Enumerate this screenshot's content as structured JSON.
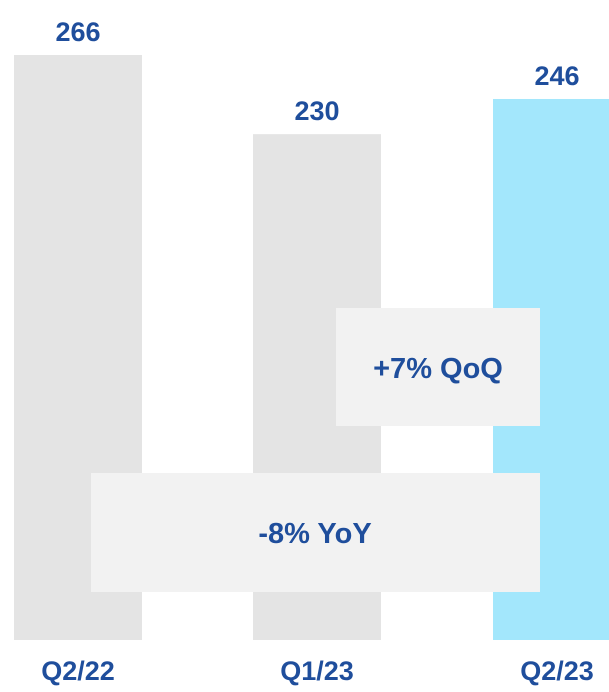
{
  "chart_data": {
    "type": "bar",
    "categories": [
      "Q2/22",
      "Q1/23",
      "Q2/23"
    ],
    "values": [
      266,
      230,
      246
    ],
    "data_labels": [
      "266",
      "230",
      "246"
    ],
    "ylim": [
      0,
      266
    ],
    "grid": false,
    "colors": {
      "default_bar": "#e4e4e4",
      "highlight_bar": "#a3e7fc",
      "label_text": "#1f4e9c",
      "annotation_box": "#f2f2f2"
    },
    "highlight_index": 2,
    "annotations": [
      {
        "text": "+7% QoQ"
      },
      {
        "text": "-8% YoY"
      }
    ]
  }
}
